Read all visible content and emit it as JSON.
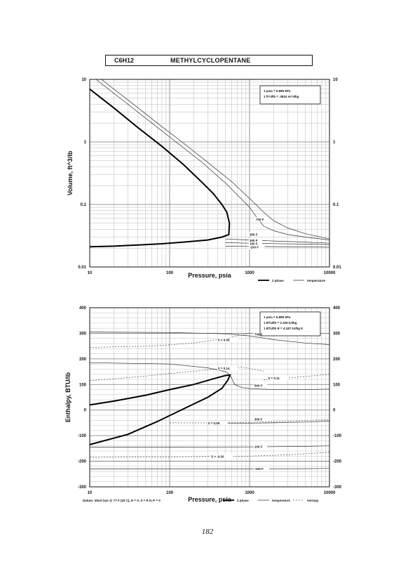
{
  "header": {
    "formula": "C6H12",
    "compound": "METHYLCYCLOPENTANE"
  },
  "page_number": "182",
  "chart_data": [
    {
      "type": "line",
      "xlabel": "Pressure, psia",
      "ylabel": "Volume, ft^3/lb",
      "x_scale": "log",
      "y_scale": "log",
      "xlim": [
        10,
        10000
      ],
      "ylim": [
        0.01,
        10
      ],
      "x_ticks": [
        "10",
        "100",
        "1000",
        "10000"
      ],
      "y_ticks": [
        "10",
        "1",
        "0.1",
        "0.01"
      ],
      "grid": true,
      "conversion_box": [
        "1 psia = 6.895 kPa",
        "1 ft^3/lb = .0624 m^3/kg"
      ],
      "legend": [
        "2 phase",
        "temperature"
      ],
      "curve_labels": [
        "700 F",
        "500 F",
        "300 F",
        "100 F",
        "-100 F"
      ],
      "series": [
        {
          "name": "2 phase",
          "x": [
            10,
            20,
            40,
            80,
            150,
            250,
            350,
            450,
            520,
            560,
            550,
            450,
            300,
            150,
            80,
            40,
            20,
            10
          ],
          "y": [
            7,
            3.5,
            1.7,
            0.85,
            0.43,
            0.23,
            0.15,
            0.1,
            0.075,
            0.05,
            0.033,
            0.03,
            0.027,
            0.025,
            0.0235,
            0.0225,
            0.0215,
            0.021
          ]
        },
        {
          "name": "700 F",
          "x": [
            14,
            30,
            70,
            150,
            300,
            600,
            1000,
            1500,
            2000,
            3000,
            5000,
            10000
          ],
          "y": [
            10,
            4.7,
            2,
            0.95,
            0.47,
            0.23,
            0.125,
            0.075,
            0.055,
            0.042,
            0.034,
            0.028
          ]
        },
        {
          "name": "500 F",
          "x": [
            12,
            25,
            60,
            120,
            250,
            500,
            800,
            1000,
            1200,
            1500,
            2000,
            3000,
            5000,
            10000
          ],
          "y": [
            10,
            4.8,
            2,
            1,
            0.48,
            0.22,
            0.12,
            0.09,
            0.065,
            0.045,
            0.038,
            0.033,
            0.03,
            0.027
          ]
        },
        {
          "name": "300 F",
          "x": [
            500,
            1000,
            2000,
            5000,
            10000
          ],
          "y": [
            0.028,
            0.027,
            0.026,
            0.025,
            0.024
          ]
        },
        {
          "name": "100 F",
          "x": [
            500,
            1000,
            2000,
            5000,
            10000
          ],
          "y": [
            0.0245,
            0.024,
            0.0236,
            0.0232,
            0.0228
          ]
        },
        {
          "name": "-100 F",
          "x": [
            500,
            1000,
            2000,
            5000,
            10000
          ],
          "y": [
            0.0215,
            0.0213,
            0.0211,
            0.0209,
            0.0207
          ]
        }
      ]
    },
    {
      "type": "line",
      "xlabel": "Pressure, psia",
      "ylabel": "Enthalpy, BTU/lb",
      "x_scale": "log",
      "xlim": [
        10,
        10000
      ],
      "ylim": [
        -300,
        400
      ],
      "x_ticks": [
        "10",
        "100",
        "1000",
        "10000"
      ],
      "y_ticks": [
        "400",
        "300",
        "200",
        "100",
        "0",
        "-100",
        "-200",
        "-300"
      ],
      "grid": true,
      "conversion_box": [
        "1 psia = 6.895 kPa",
        "1 BTU/lb = 2.326 kJ/kg",
        "1 BTU/lb R = 4.187 kJ/kg K"
      ],
      "legend": [
        "2 phase",
        "temperature",
        "entropy"
      ],
      "footnote": "Datum: Ideal Gas @ 77 F (25 C), H = 0, S = R ln P = 0",
      "curve_labels": [
        "S = 0.55",
        "700 F",
        "S = 0.14",
        "S = 0.11",
        "500 F",
        "300 F",
        "S = 0.09",
        "100 F",
        "S = -0.20",
        "-100 F"
      ],
      "series": [
        {
          "name": "2 phase",
          "x": [
            10,
            20,
            50,
            100,
            200,
            350,
            500,
            570,
            530,
            450,
            300,
            150,
            70,
            30,
            10
          ],
          "y": [
            20,
            35,
            58,
            80,
            100,
            122,
            135,
            137,
            115,
            85,
            50,
            5,
            -45,
            -95,
            -135
          ]
        },
        {
          "name": "700 F",
          "x": [
            10,
            100,
            500,
            1000,
            2000,
            5000,
            10000
          ],
          "y": [
            305,
            303,
            298,
            290,
            275,
            262,
            256
          ]
        },
        {
          "name": "500 F",
          "x": [
            10,
            100,
            300,
            500,
            570,
            650,
            800,
            1000,
            2000,
            5000,
            10000
          ],
          "y": [
            185,
            180,
            165,
            150,
            137,
            100,
            88,
            84,
            80,
            80,
            82
          ]
        },
        {
          "name": "300 F",
          "x": [
            500,
            1000,
            2000,
            5000,
            10000
          ],
          "y": [
            -52,
            -51,
            -50,
            -47,
            -43
          ]
        },
        {
          "name": "100 F",
          "x": [
            10,
            100,
            1000,
            5000,
            10000
          ],
          "y": [
            -145,
            -145,
            -144,
            -142,
            -140
          ]
        },
        {
          "name": "-100 F",
          "x": [
            10,
            100,
            1000,
            5000,
            10000
          ],
          "y": [
            -230,
            -230,
            -230,
            -229,
            -228
          ]
        },
        {
          "name": "S = 0.55",
          "x": [
            10,
            60,
            200,
            500,
            1000
          ],
          "y": [
            245,
            250,
            262,
            280,
            300
          ]
        },
        {
          "name": "S = 0.14",
          "x": [
            10,
            40,
            150,
            400,
            800,
            1500
          ],
          "y": [
            115,
            130,
            148,
            160,
            168,
            152
          ]
        },
        {
          "name": "S = 0.11",
          "x": [
            1500,
            3000,
            10000
          ],
          "y": [
            118,
            125,
            140
          ]
        },
        {
          "name": "S = 0.09",
          "x": [
            100,
            300,
            1000,
            3000,
            10000
          ],
          "y": [
            -50,
            -50,
            -48,
            -44,
            -37
          ]
        },
        {
          "name": "S = -0.20",
          "x": [
            10,
            100,
            1000,
            3000,
            10000
          ],
          "y": [
            -185,
            -183,
            -180,
            -175,
            -165
          ]
        }
      ]
    }
  ]
}
